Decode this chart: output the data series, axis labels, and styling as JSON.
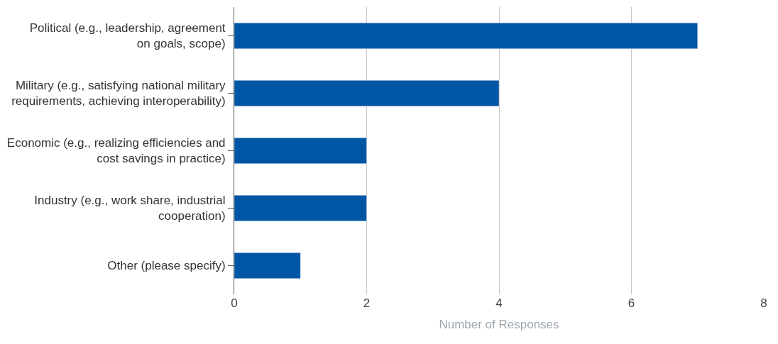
{
  "chart_data": {
    "type": "bar",
    "orientation": "horizontal",
    "xlabel": "Number of Responses",
    "categories": [
      "Political (e.g., leadership, agreement\non goals, scope)",
      "Military (e.g., satisfying national military\nrequirements, achieving interoperability)",
      "Economic (e.g., realizing efficiencies and\ncost savings in practice)",
      "Industry (e.g., work share, industrial\ncooperation)",
      "Other (please specify)"
    ],
    "values": [
      7,
      4,
      2,
      2,
      1
    ],
    "color": "#0055a5",
    "xlim": [
      0,
      8
    ],
    "xticks": [
      0,
      2,
      4,
      6,
      8
    ],
    "grid": "x",
    "legend": false
  }
}
